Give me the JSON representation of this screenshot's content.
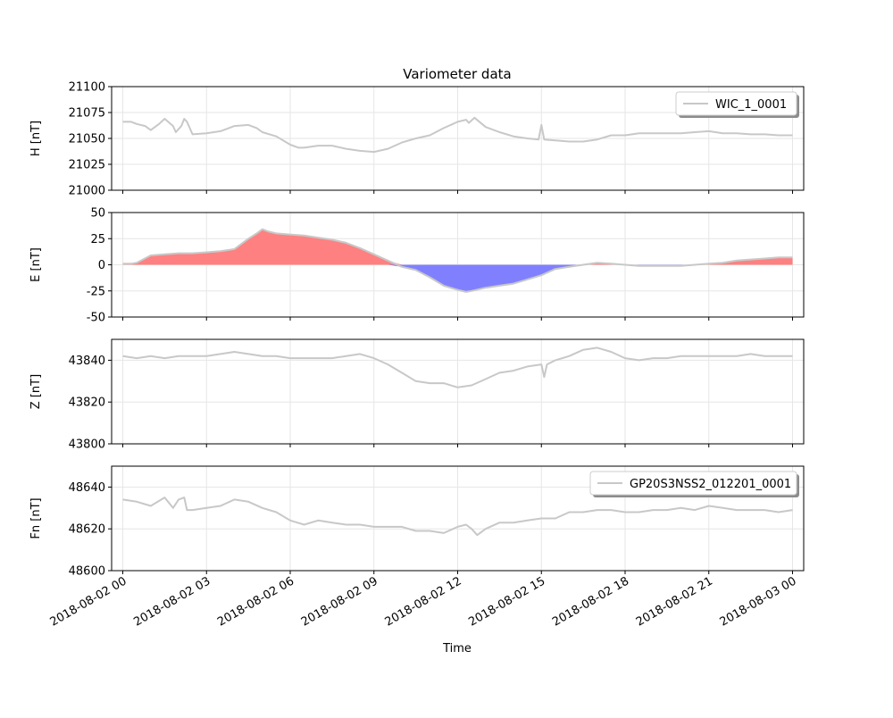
{
  "figure": {
    "title": "Variometer data",
    "xlabel": "Time"
  },
  "colors": {
    "trace": "#c8c8c8",
    "positive_fill": "#ff8080",
    "negative_fill": "#8080ff",
    "grid": "#e6e6e6"
  },
  "chart_data": [
    {
      "type": "line",
      "ylabel": "H [nT]",
      "ylim": [
        21000,
        21100
      ],
      "yticks": [
        21000,
        21025,
        21050,
        21075,
        21100
      ],
      "xlim_hours": [
        -0.4,
        24.4
      ],
      "grid": true,
      "legend": {
        "placement": "top-right",
        "entries": [
          "WIC_1_0001"
        ]
      },
      "series": [
        {
          "name": "WIC_1_0001",
          "x_hours": [
            0,
            0.3,
            0.5,
            0.8,
            1.0,
            1.3,
            1.5,
            1.8,
            1.9,
            2.1,
            2.2,
            2.3,
            2.5,
            3.0,
            3.5,
            4.0,
            4.5,
            4.8,
            5.0,
            5.5,
            6.0,
            6.3,
            6.5,
            7.0,
            7.5,
            8.0,
            8.5,
            9.0,
            9.5,
            10.0,
            10.5,
            11.0,
            11.5,
            12.0,
            12.3,
            12.4,
            12.6,
            13.0,
            13.5,
            14.0,
            14.5,
            14.9,
            15.0,
            15.1,
            15.5,
            16.0,
            16.5,
            17.0,
            17.5,
            18.0,
            18.5,
            19.0,
            19.5,
            20.0,
            20.5,
            21.0,
            21.5,
            22.0,
            22.5,
            23.0,
            23.5,
            24.0
          ],
          "values": [
            21066,
            21066,
            21064,
            21062,
            21058,
            21064,
            21069,
            21062,
            21056,
            21062,
            21069,
            21066,
            21054,
            21055,
            21057,
            21062,
            21063,
            21060,
            21056,
            21052,
            21044,
            21041,
            21041,
            21043,
            21043,
            21040,
            21038,
            21037,
            21040,
            21046,
            21050,
            21053,
            21060,
            21066,
            21068,
            21065,
            21070,
            21061,
            21056,
            21052,
            21050,
            21049,
            21063,
            21049,
            21048,
            21047,
            21047,
            21049,
            21053,
            21053,
            21055,
            21055,
            21055,
            21055,
            21056,
            21057,
            21055,
            21055,
            21054,
            21054,
            21053,
            21053
          ]
        }
      ]
    },
    {
      "type": "area",
      "ylabel": "E [nT]",
      "ylim": [
        -50,
        50
      ],
      "yticks": [
        -50,
        -25,
        0,
        25,
        50
      ],
      "xlim_hours": [
        -0.4,
        24.4
      ],
      "grid": true,
      "series": [
        {
          "name": "",
          "x_hours": [
            0,
            0.3,
            0.5,
            1.0,
            1.5,
            2.0,
            2.5,
            3.0,
            3.5,
            4.0,
            4.5,
            4.8,
            5.0,
            5.2,
            5.5,
            6.0,
            6.5,
            7.0,
            7.5,
            8.0,
            8.5,
            9.0,
            9.5,
            10.0,
            10.5,
            11.0,
            11.5,
            12.0,
            12.3,
            12.5,
            13.0,
            13.5,
            14.0,
            14.5,
            15.0,
            15.5,
            16.0,
            16.5,
            17.0,
            17.5,
            18.0,
            18.5,
            19.0,
            19.5,
            20.0,
            20.5,
            21.0,
            21.5,
            22.0,
            22.5,
            23.0,
            23.5,
            24.0
          ],
          "values": [
            1,
            1,
            2,
            9,
            10,
            11,
            11,
            12,
            13,
            15,
            25,
            30,
            34,
            32,
            30,
            29,
            28,
            26,
            24,
            21,
            16,
            10,
            4,
            -2,
            -5,
            -12,
            -20,
            -24,
            -26,
            -25,
            -22,
            -20,
            -18,
            -14,
            -10,
            -4,
            -2,
            0,
            2,
            1,
            0,
            -1,
            -1,
            -1,
            -1,
            0,
            1,
            2,
            4,
            5,
            6,
            7,
            7
          ]
        }
      ]
    },
    {
      "type": "line",
      "ylabel": "Z [nT]",
      "ylim": [
        43800,
        43850
      ],
      "yticks": [
        43800,
        43820,
        43840
      ],
      "xlim_hours": [
        -0.4,
        24.4
      ],
      "grid": true,
      "series": [
        {
          "name": "",
          "x_hours": [
            0,
            0.5,
            1.0,
            1.5,
            2.0,
            2.5,
            3.0,
            3.5,
            4.0,
            4.5,
            5.0,
            5.5,
            6.0,
            6.5,
            7.0,
            7.5,
            8.0,
            8.5,
            9.0,
            9.5,
            10.0,
            10.5,
            11.0,
            11.5,
            12.0,
            12.5,
            13.0,
            13.5,
            14.0,
            14.5,
            15.0,
            15.1,
            15.2,
            15.5,
            16.0,
            16.5,
            17.0,
            17.5,
            18.0,
            18.5,
            19.0,
            19.5,
            20.0,
            20.5,
            21.0,
            21.5,
            22.0,
            22.5,
            23.0,
            23.5,
            24.0
          ],
          "values": [
            43842,
            43841,
            43842,
            43841,
            43842,
            43842,
            43842,
            43843,
            43844,
            43843,
            43842,
            43842,
            43841,
            43841,
            43841,
            43841,
            43842,
            43843,
            43841,
            43838,
            43834,
            43830,
            43829,
            43829,
            43827,
            43828,
            43831,
            43834,
            43835,
            43837,
            43838,
            43832,
            43838,
            43840,
            43842,
            43845,
            43846,
            43844,
            43841,
            43840,
            43841,
            43841,
            43842,
            43842,
            43842,
            43842,
            43842,
            43843,
            43842,
            43842,
            43842
          ]
        }
      ]
    },
    {
      "type": "line",
      "ylabel": "Fn [nT]",
      "xlabel": "Time",
      "ylim": [
        48600,
        48650
      ],
      "yticks": [
        48600,
        48620,
        48640
      ],
      "xlim_hours": [
        -0.4,
        24.4
      ],
      "grid": true,
      "legend": {
        "placement": "top-right",
        "entries": [
          "GP20S3NSS2_012201_0001"
        ]
      },
      "series": [
        {
          "name": "GP20S3NSS2_012201_0001",
          "x_hours": [
            0,
            0.5,
            1.0,
            1.5,
            1.8,
            2.0,
            2.2,
            2.3,
            2.5,
            3.0,
            3.5,
            4.0,
            4.5,
            5.0,
            5.5,
            6.0,
            6.5,
            7.0,
            7.5,
            8.0,
            8.5,
            9.0,
            9.5,
            10.0,
            10.5,
            11.0,
            11.5,
            12.0,
            12.3,
            12.5,
            12.7,
            13.0,
            13.5,
            14.0,
            14.5,
            15.0,
            15.5,
            16.0,
            16.5,
            17.0,
            17.5,
            18.0,
            18.5,
            19.0,
            19.5,
            20.0,
            20.5,
            21.0,
            21.5,
            22.0,
            22.5,
            23.0,
            23.5,
            24.0
          ],
          "values": [
            48634,
            48633,
            48631,
            48635,
            48630,
            48634,
            48635,
            48629,
            48629,
            48630,
            48631,
            48634,
            48633,
            48630,
            48628,
            48624,
            48622,
            48624,
            48623,
            48622,
            48622,
            48621,
            48621,
            48621,
            48619,
            48619,
            48618,
            48621,
            48622,
            48620,
            48617,
            48620,
            48623,
            48623,
            48624,
            48625,
            48625,
            48628,
            48628,
            48629,
            48629,
            48628,
            48628,
            48629,
            48629,
            48630,
            48629,
            48631,
            48630,
            48629,
            48629,
            48629,
            48628,
            48629
          ]
        }
      ]
    }
  ],
  "x_axis": {
    "tick_hours": [
      0,
      3,
      6,
      9,
      12,
      15,
      18,
      21,
      24
    ],
    "tick_labels": [
      "2018-08-02 00",
      "2018-08-02 03",
      "2018-08-02 06",
      "2018-08-02 09",
      "2018-08-02 12",
      "2018-08-02 15",
      "2018-08-02 18",
      "2018-08-02 21",
      "2018-08-03 00"
    ]
  }
}
